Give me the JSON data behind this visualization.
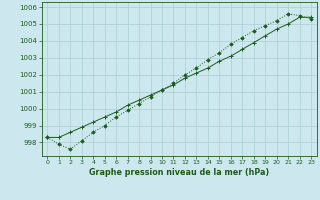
{
  "title": "Graphe pression niveau de la mer (hPa)",
  "background_color": "#cce8ee",
  "grid_color": "#aacdd4",
  "line_color": "#1a5c1a",
  "x_ticks": [
    0,
    1,
    2,
    3,
    4,
    5,
    6,
    7,
    8,
    9,
    10,
    11,
    12,
    13,
    14,
    15,
    16,
    17,
    18,
    19,
    20,
    21,
    22,
    23
  ],
  "ylim": [
    997.2,
    1006.3
  ],
  "yticks": [
    998,
    999,
    1000,
    1001,
    1002,
    1003,
    1004,
    1005,
    1006
  ],
  "series1": [
    998.3,
    997.9,
    997.6,
    998.1,
    998.6,
    999.0,
    999.5,
    999.9,
    1000.3,
    1000.7,
    1001.1,
    1001.5,
    1002.0,
    1002.4,
    1002.9,
    1003.3,
    1003.8,
    1004.2,
    1004.6,
    1004.9,
    1005.2,
    1005.6,
    1005.5,
    1005.3
  ],
  "series2": [
    998.3,
    998.3,
    998.6,
    998.9,
    999.2,
    999.5,
    999.8,
    1000.2,
    1000.5,
    1000.8,
    1001.1,
    1001.4,
    1001.8,
    1002.1,
    1002.4,
    1002.8,
    1003.1,
    1003.5,
    1003.9,
    1004.3,
    1004.7,
    1005.0,
    1005.4,
    1005.4
  ]
}
